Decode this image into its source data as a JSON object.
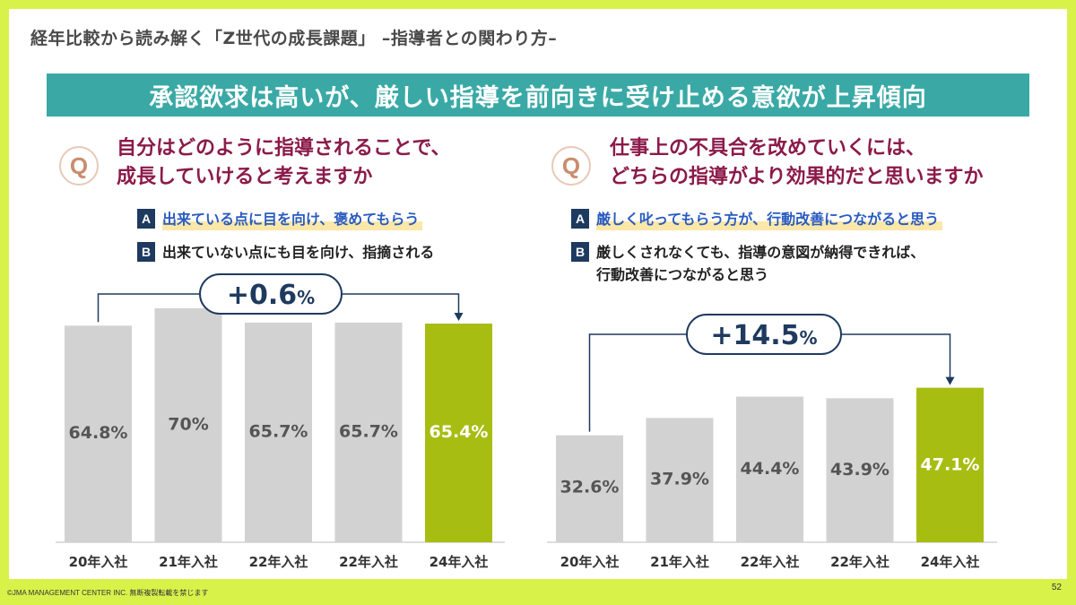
{
  "page": {
    "title": "経年比較から読み解く「Z世代の成長課題」 –指導者との関わり方–",
    "banner": "承認欲求は高いが、厳しい指導を前向きに受け止める意欲が上昇傾向",
    "footer_copyright": "©JMA MANAGEMENT CENTER INC. 無断複製転載を禁じます",
    "page_number": "52"
  },
  "icons": {
    "question": "Q"
  },
  "left": {
    "question_line1": "自分はどのように指導されることで、",
    "question_line2": "成長していけると考えますか",
    "option_a_letter": "A",
    "option_a_text": "出来ている点に目を向け、褒めてもらう",
    "option_b_letter": "B",
    "option_b_text": "出来ていない点にも目を向け、指摘される"
  },
  "right": {
    "question_line1": "仕事上の不具合を改めていくには、",
    "question_line2": "どちらの指導がより効果的だと思いますか",
    "option_a_letter": "A",
    "option_a_text": "厳しく叱ってもらう方が、行動改善につながると思う",
    "option_b_letter": "B",
    "option_b_text_line1": "厳しくされなくても、指導の意図が納得できれば、",
    "option_b_text_line2": "行動改善につながると思う"
  },
  "colors": {
    "bar_default": "#d3d2d2",
    "bar_highlight": "#a8bd12",
    "label_default": "#555555",
    "label_highlight": "#ffffff",
    "bracket": "#1f3a5f",
    "banner": "#3aa9a6"
  },
  "chart_data": [
    {
      "type": "bar",
      "title": "",
      "categories": [
        "20年入社",
        "21年入社",
        "22年入社",
        "22年入社",
        "24年入社"
      ],
      "values": [
        64.8,
        70,
        65.7,
        65.7,
        65.4
      ],
      "value_labels": [
        "64.8%",
        "70%",
        "65.7%",
        "65.7%",
        "65.4%"
      ],
      "highlight_index": 4,
      "ylim": [
        0,
        100
      ],
      "change_label_main": "+0.6",
      "change_label_unit": "%",
      "xlabel": "",
      "ylabel": ""
    },
    {
      "type": "bar",
      "title": "",
      "categories": [
        "20年入社",
        "21年入社",
        "22年入社",
        "22年入社",
        "24年入社"
      ],
      "values": [
        32.6,
        37.9,
        44.4,
        43.9,
        47.1
      ],
      "value_labels": [
        "32.6%",
        "37.9%",
        "44.4%",
        "43.9%",
        "47.1%"
      ],
      "highlight_index": 4,
      "ylim": [
        0,
        100
      ],
      "change_label_main": "+14.5",
      "change_label_unit": "%",
      "xlabel": "",
      "ylabel": ""
    }
  ]
}
